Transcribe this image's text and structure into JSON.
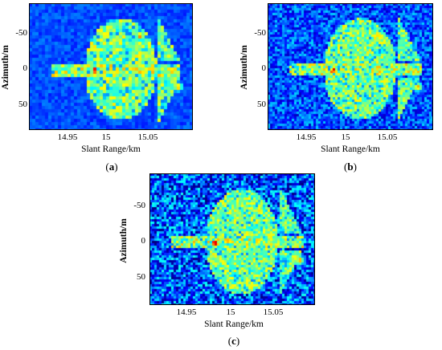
{
  "figure": {
    "ylabel": "Azimuth/m",
    "xlabel": "Slant Range/km",
    "yticks": [
      "-50",
      "0",
      "50"
    ],
    "xticks": [
      "14.95",
      "15",
      "15.05"
    ],
    "panels": [
      {
        "caption_open": "(",
        "caption_letter": "a",
        "caption_close": ")",
        "noise_level": 0.12
      },
      {
        "caption_open": "(",
        "caption_letter": "b",
        "caption_close": ")",
        "noise_level": 0.3
      },
      {
        "caption_open": "(",
        "caption_letter": "c",
        "caption_close": ")",
        "noise_level": 0.45
      }
    ],
    "colormap": "jet",
    "colors": {
      "background": "#1530c8",
      "hot": "#d01010"
    }
  }
}
